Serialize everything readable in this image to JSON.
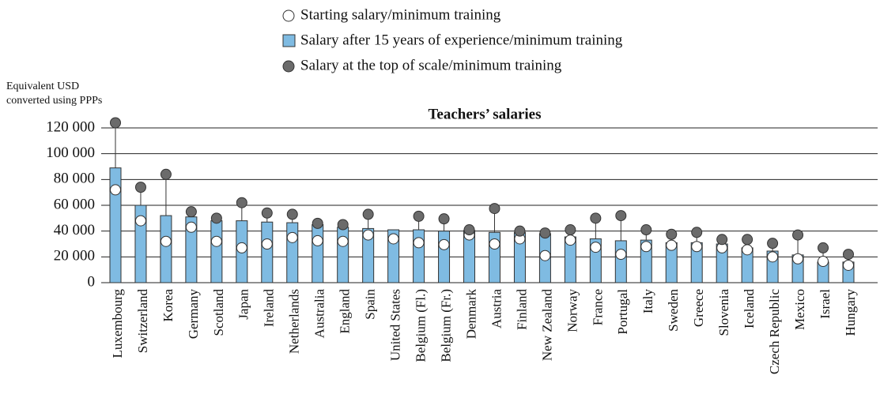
{
  "chart_data": {
    "type": "bar",
    "title": "Teachers’ salaries",
    "y_label": [
      "Equivalent USD",
      "converted using PPPs"
    ],
    "categories": [
      "Luxembourg",
      "Switzerland",
      "Korea",
      "Germany",
      "Scotland",
      "Japan",
      "Ireland",
      "Netherlands",
      "Australia",
      "England",
      "Spain",
      "United States",
      "Belgium (Fl.)",
      "Belgium (Fr.)",
      "Denmark",
      "Austria",
      "Finland",
      "New Zealand",
      "Norway",
      "France",
      "Portugal",
      "Italy",
      "Sweden",
      "Greece",
      "Slovenia",
      "Iceland",
      "Czech Republic",
      "Mexico",
      "Israel",
      "Hungary"
    ],
    "series": [
      {
        "name": "Starting salary/minimum training",
        "color": "#ffffff",
        "marker": "circle",
        "values": [
          72000,
          48000,
          32000,
          43000,
          32000,
          27000,
          30000,
          35000,
          32500,
          32000,
          37000,
          34000,
          31000,
          29500,
          37000,
          30000,
          34000,
          21000,
          33000,
          27500,
          22000,
          28000,
          29000,
          28000,
          27000,
          25500,
          20000,
          18500,
          16500,
          13500
        ]
      },
      {
        "name": "Salary after 15 years of experience/minimum training",
        "color": "#7fbbe2",
        "marker": "bar",
        "values": [
          89000,
          60000,
          52000,
          51000,
          48000,
          48000,
          47000,
          46500,
          45000,
          43000,
          42000,
          41000,
          41000,
          40000,
          40500,
          39000,
          39000,
          38000,
          35500,
          34000,
          32500,
          33000,
          31000,
          31000,
          30000,
          27000,
          24500,
          21500,
          16000,
          16000
        ]
      },
      {
        "name": "Salary at the top of scale/minimum training",
        "color": "#6b6b6b",
        "marker": "circle",
        "values": [
          124000,
          74000,
          84000,
          55000,
          50000,
          62000,
          54000,
          53000,
          46000,
          45000,
          53000,
          null,
          51500,
          49500,
          41000,
          57500,
          40000,
          38500,
          41000,
          50000,
          52000,
          41000,
          37500,
          39000,
          33500,
          33500,
          30500,
          37000,
          27000,
          22000
        ]
      }
    ],
    "ylim": [
      0,
      120000
    ],
    "yticks": [
      0,
      {
        "value": 20000,
        "label": "20 000"
      },
      {
        "value": 40000,
        "label": "40 000"
      },
      {
        "value": 60000,
        "label": "60 000"
      },
      {
        "value": 80000,
        "label": "80 000"
      },
      {
        "value": 100000,
        "label": "100 000"
      },
      {
        "value": 120000,
        "label": "120 000"
      }
    ],
    "grid": true
  }
}
